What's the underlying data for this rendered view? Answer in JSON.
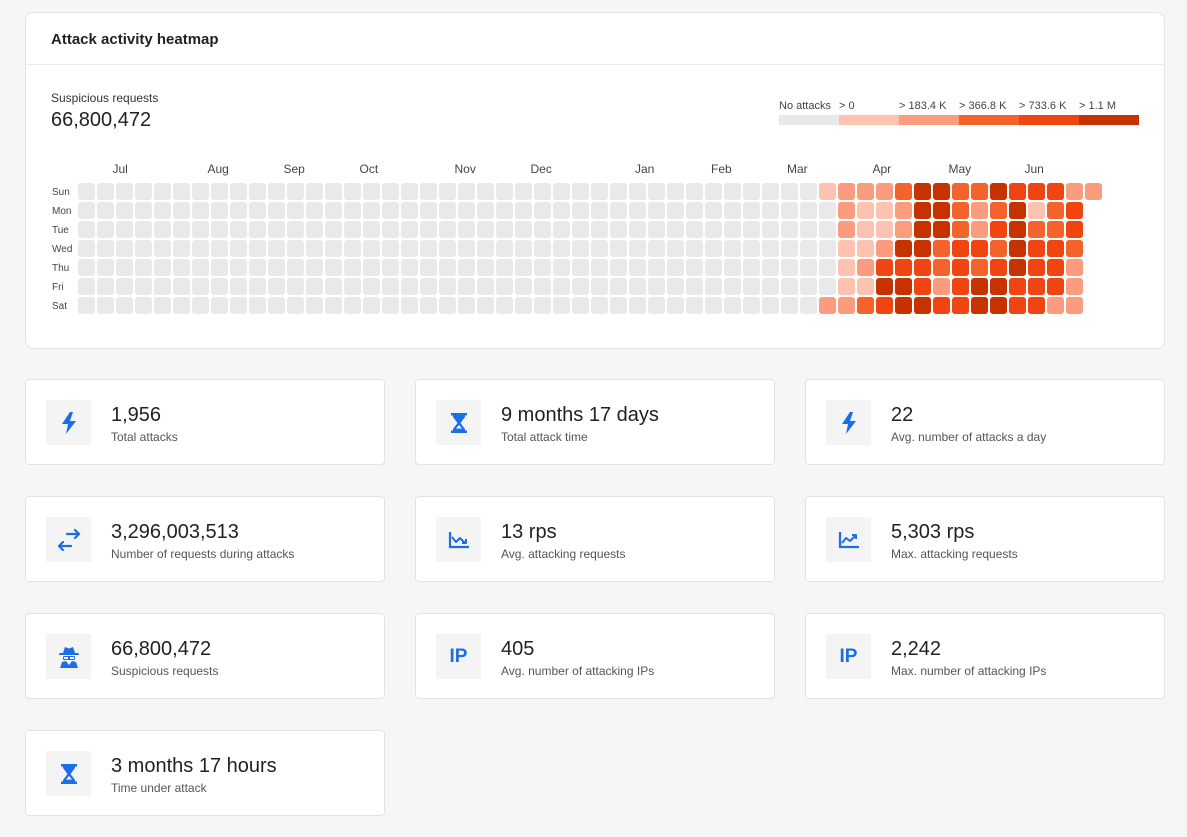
{
  "heatmap": {
    "title": "Attack activity heatmap",
    "summary_label": "Suspicious requests",
    "summary_value": "66,800,472",
    "legend": [
      {
        "label": "No attacks",
        "color": "#e8e9eb"
      },
      {
        "label": "> 0",
        "color": "#fdc3b0"
      },
      {
        "label": "> 183.4 K",
        "color": "#fb9c7f"
      },
      {
        "label": "> 366.8 K",
        "color": "#f5632d"
      },
      {
        "label": "> 733.6 K",
        "color": "#f04510"
      },
      {
        "label": "> 1.1 M",
        "color": "#c73300"
      }
    ],
    "months": [
      "Jul",
      "Aug",
      "Sep",
      "Oct",
      "Nov",
      "Dec",
      "Jan",
      "Feb",
      "Mar",
      "Apr",
      "May",
      "Jun"
    ],
    "days": [
      "Sun",
      "Mon",
      "Tue",
      "Wed",
      "Thu",
      "Fri",
      "Sat"
    ],
    "weeks": 54,
    "last_week_days": 1,
    "levels": [
      [
        1,
        2,
        2,
        2,
        3,
        5,
        5,
        3,
        3,
        5,
        4,
        4,
        4,
        2,
        2
      ],
      [
        0,
        2,
        1,
        1,
        2,
        5,
        5,
        3,
        2,
        3,
        5,
        1,
        3,
        4,
        -1
      ],
      [
        0,
        2,
        1,
        1,
        2,
        5,
        5,
        3,
        2,
        4,
        5,
        3,
        3,
        4,
        -1
      ],
      [
        0,
        1,
        1,
        2,
        5,
        5,
        3,
        4,
        4,
        3,
        5,
        4,
        4,
        3,
        -1
      ],
      [
        0,
        1,
        2,
        4,
        4,
        4,
        3,
        4,
        3,
        4,
        5,
        4,
        4,
        2,
        -1
      ],
      [
        0,
        1,
        1,
        5,
        5,
        4,
        2,
        4,
        5,
        5,
        4,
        4,
        4,
        2,
        -1
      ],
      [
        2,
        2,
        3,
        4,
        5,
        5,
        4,
        4,
        5,
        5,
        4,
        4,
        2,
        2,
        -1
      ]
    ]
  },
  "stats": [
    {
      "icon": "lightning-icon",
      "value": "1,956",
      "label": "Total attacks"
    },
    {
      "icon": "hourglass-icon",
      "value": "9 months 17 days",
      "label": "Total attack time"
    },
    {
      "icon": "lightning-icon",
      "value": "22",
      "label": "Avg. number of attacks a day"
    },
    {
      "icon": "arrows-exchange-icon",
      "value": "3,296,003,513",
      "label": "Number of requests during attacks"
    },
    {
      "icon": "chart-down-icon",
      "value": "13 rps",
      "label": "Avg. attacking requests"
    },
    {
      "icon": "chart-up-icon",
      "value": "5,303 rps",
      "label": "Max. attacking requests"
    },
    {
      "icon": "spy-icon",
      "value": "66,800,472",
      "label": "Suspicious requests"
    },
    {
      "icon": "ip-icon",
      "value": "405",
      "label": "Avg. number of attacking IPs",
      "icon_text": "IP"
    },
    {
      "icon": "ip-icon",
      "value": "2,242",
      "label": "Max. number of attacking IPs",
      "icon_text": "IP"
    },
    {
      "icon": "hourglass-icon",
      "value": "3 months 17 hours",
      "label": "Time under attack"
    }
  ]
}
